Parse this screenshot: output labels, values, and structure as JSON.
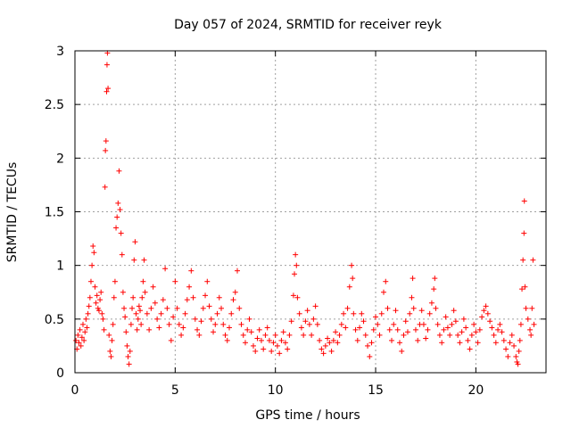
{
  "chart_data": {
    "type": "scatter",
    "title": "Day 057 of 2024, SRMTID for receiver reyk",
    "xlabel": "GPS time / hours",
    "ylabel": "SRMTID / TECUs",
    "xlim": [
      0,
      23.5
    ],
    "ylim": [
      0,
      3
    ],
    "xticks": [
      0,
      5,
      10,
      15,
      20
    ],
    "xtick_labels": [
      "0",
      "5",
      "10",
      "15",
      "20"
    ],
    "yticks": [
      0,
      0.5,
      1,
      1.5,
      2,
      2.5,
      3
    ],
    "ytick_labels": [
      "0",
      "0.5",
      "1",
      "1.5",
      "2",
      "2.5",
      "3"
    ],
    "grid": true,
    "marker": "+",
    "color": "#ff0000",
    "series": [
      {
        "name": "SRMTID",
        "points": [
          [
            0.05,
            0.3
          ],
          [
            0.1,
            0.22
          ],
          [
            0.15,
            0.35
          ],
          [
            0.2,
            0.28
          ],
          [
            0.25,
            0.4
          ],
          [
            0.3,
            0.25
          ],
          [
            0.35,
            0.33
          ],
          [
            0.4,
            0.45
          ],
          [
            0.45,
            0.3
          ],
          [
            0.5,
            0.38
          ],
          [
            0.55,
            0.5
          ],
          [
            0.6,
            0.42
          ],
          [
            0.65,
            0.55
          ],
          [
            0.7,
            0.62
          ],
          [
            0.75,
            0.7
          ],
          [
            0.8,
            0.85
          ],
          [
            0.85,
            1.0
          ],
          [
            0.9,
            1.18
          ],
          [
            0.95,
            1.12
          ],
          [
            1.0,
            0.8
          ],
          [
            1.05,
            0.65
          ],
          [
            1.1,
            0.72
          ],
          [
            1.15,
            0.6
          ],
          [
            1.2,
            0.58
          ],
          [
            1.25,
            0.68
          ],
          [
            1.3,
            0.75
          ],
          [
            1.35,
            0.55
          ],
          [
            1.4,
            0.5
          ],
          [
            1.45,
            0.4
          ],
          [
            1.5,
            1.73
          ],
          [
            1.52,
            2.07
          ],
          [
            1.55,
            2.16
          ],
          [
            1.58,
            2.62
          ],
          [
            1.6,
            2.87
          ],
          [
            1.62,
            2.98
          ],
          [
            1.65,
            2.65
          ],
          [
            1.7,
            0.35
          ],
          [
            1.75,
            0.2
          ],
          [
            1.8,
            0.15
          ],
          [
            1.85,
            0.3
          ],
          [
            1.9,
            0.45
          ],
          [
            1.95,
            0.7
          ],
          [
            2.0,
            0.85
          ],
          [
            2.05,
            1.35
          ],
          [
            2.1,
            1.45
          ],
          [
            2.15,
            1.58
          ],
          [
            2.2,
            1.88
          ],
          [
            2.25,
            1.52
          ],
          [
            2.3,
            1.3
          ],
          [
            2.35,
            1.1
          ],
          [
            2.4,
            0.75
          ],
          [
            2.45,
            0.6
          ],
          [
            2.5,
            0.52
          ],
          [
            2.55,
            0.38
          ],
          [
            2.6,
            0.25
          ],
          [
            2.65,
            0.15
          ],
          [
            2.7,
            0.08
          ],
          [
            2.75,
            0.2
          ],
          [
            2.8,
            0.45
          ],
          [
            2.85,
            0.6
          ],
          [
            2.9,
            0.7
          ],
          [
            2.95,
            1.05
          ],
          [
            3.0,
            1.22
          ],
          [
            3.05,
            0.55
          ],
          [
            3.1,
            0.4
          ],
          [
            3.15,
            0.5
          ],
          [
            3.2,
            0.62
          ],
          [
            3.25,
            0.58
          ],
          [
            3.3,
            0.45
          ],
          [
            3.35,
            0.7
          ],
          [
            3.4,
            0.85
          ],
          [
            3.45,
            1.05
          ],
          [
            3.5,
            0.75
          ],
          [
            3.6,
            0.55
          ],
          [
            3.7,
            0.4
          ],
          [
            3.8,
            0.6
          ],
          [
            3.9,
            0.8
          ],
          [
            4.0,
            0.65
          ],
          [
            4.1,
            0.5
          ],
          [
            4.2,
            0.42
          ],
          [
            4.3,
            0.55
          ],
          [
            4.4,
            0.68
          ],
          [
            4.5,
            0.97
          ],
          [
            4.6,
            0.6
          ],
          [
            4.7,
            0.45
          ],
          [
            4.8,
            0.3
          ],
          [
            4.9,
            0.52
          ],
          [
            5.0,
            0.85
          ],
          [
            5.1,
            0.6
          ],
          [
            5.2,
            0.45
          ],
          [
            5.3,
            0.35
          ],
          [
            5.4,
            0.42
          ],
          [
            5.5,
            0.55
          ],
          [
            5.6,
            0.68
          ],
          [
            5.7,
            0.8
          ],
          [
            5.8,
            0.95
          ],
          [
            5.9,
            0.7
          ],
          [
            6.0,
            0.5
          ],
          [
            6.1,
            0.4
          ],
          [
            6.2,
            0.35
          ],
          [
            6.3,
            0.48
          ],
          [
            6.4,
            0.6
          ],
          [
            6.5,
            0.72
          ],
          [
            6.6,
            0.85
          ],
          [
            6.7,
            0.62
          ],
          [
            6.8,
            0.5
          ],
          [
            6.9,
            0.38
          ],
          [
            7.0,
            0.45
          ],
          [
            7.1,
            0.55
          ],
          [
            7.2,
            0.7
          ],
          [
            7.3,
            0.6
          ],
          [
            7.4,
            0.45
          ],
          [
            7.5,
            0.35
          ],
          [
            7.6,
            0.3
          ],
          [
            7.7,
            0.42
          ],
          [
            7.8,
            0.55
          ],
          [
            7.9,
            0.68
          ],
          [
            8.0,
            0.75
          ],
          [
            8.1,
            0.95
          ],
          [
            8.2,
            0.6
          ],
          [
            8.3,
            0.45
          ],
          [
            8.4,
            0.35
          ],
          [
            8.5,
            0.28
          ],
          [
            8.6,
            0.4
          ],
          [
            8.7,
            0.5
          ],
          [
            8.8,
            0.38
          ],
          [
            8.9,
            0.25
          ],
          [
            9.0,
            0.2
          ],
          [
            9.1,
            0.32
          ],
          [
            9.2,
            0.4
          ],
          [
            9.3,
            0.3
          ],
          [
            9.4,
            0.22
          ],
          [
            9.5,
            0.35
          ],
          [
            9.6,
            0.42
          ],
          [
            9.7,
            0.3
          ],
          [
            9.8,
            0.2
          ],
          [
            9.9,
            0.28
          ],
          [
            10.0,
            0.35
          ],
          [
            10.1,
            0.25
          ],
          [
            10.2,
            0.18
          ],
          [
            10.3,
            0.3
          ],
          [
            10.4,
            0.38
          ],
          [
            10.5,
            0.28
          ],
          [
            10.6,
            0.22
          ],
          [
            10.7,
            0.35
          ],
          [
            10.8,
            0.48
          ],
          [
            10.9,
            0.72
          ],
          [
            10.95,
            0.92
          ],
          [
            11.0,
            1.1
          ],
          [
            11.05,
            1.0
          ],
          [
            11.1,
            0.7
          ],
          [
            11.2,
            0.55
          ],
          [
            11.3,
            0.42
          ],
          [
            11.4,
            0.35
          ],
          [
            11.5,
            0.48
          ],
          [
            11.6,
            0.58
          ],
          [
            11.7,
            0.45
          ],
          [
            11.8,
            0.35
          ],
          [
            11.9,
            0.5
          ],
          [
            12.0,
            0.62
          ],
          [
            12.1,
            0.45
          ],
          [
            12.2,
            0.3
          ],
          [
            12.3,
            0.22
          ],
          [
            12.4,
            0.18
          ],
          [
            12.5,
            0.25
          ],
          [
            12.6,
            0.32
          ],
          [
            12.7,
            0.28
          ],
          [
            12.8,
            0.2
          ],
          [
            12.9,
            0.3
          ],
          [
            13.0,
            0.38
          ],
          [
            13.1,
            0.28
          ],
          [
            13.2,
            0.35
          ],
          [
            13.3,
            0.45
          ],
          [
            13.4,
            0.55
          ],
          [
            13.5,
            0.42
          ],
          [
            13.6,
            0.6
          ],
          [
            13.7,
            0.8
          ],
          [
            13.8,
            1.0
          ],
          [
            13.85,
            0.88
          ],
          [
            13.9,
            0.55
          ],
          [
            14.0,
            0.4
          ],
          [
            14.1,
            0.3
          ],
          [
            14.2,
            0.42
          ],
          [
            14.3,
            0.55
          ],
          [
            14.4,
            0.48
          ],
          [
            14.5,
            0.35
          ],
          [
            14.6,
            0.25
          ],
          [
            14.7,
            0.15
          ],
          [
            14.8,
            0.28
          ],
          [
            14.9,
            0.4
          ],
          [
            15.0,
            0.52
          ],
          [
            15.1,
            0.45
          ],
          [
            15.2,
            0.35
          ],
          [
            15.3,
            0.55
          ],
          [
            15.4,
            0.75
          ],
          [
            15.5,
            0.85
          ],
          [
            15.6,
            0.6
          ],
          [
            15.7,
            0.4
          ],
          [
            15.8,
            0.3
          ],
          [
            15.9,
            0.45
          ],
          [
            16.0,
            0.58
          ],
          [
            16.1,
            0.4
          ],
          [
            16.2,
            0.28
          ],
          [
            16.3,
            0.2
          ],
          [
            16.4,
            0.35
          ],
          [
            16.5,
            0.48
          ],
          [
            16.6,
            0.38
          ],
          [
            16.7,
            0.55
          ],
          [
            16.8,
            0.7
          ],
          [
            16.85,
            0.88
          ],
          [
            16.9,
            0.6
          ],
          [
            17.0,
            0.4
          ],
          [
            17.1,
            0.3
          ],
          [
            17.2,
            0.45
          ],
          [
            17.3,
            0.58
          ],
          [
            17.4,
            0.45
          ],
          [
            17.5,
            0.32
          ],
          [
            17.6,
            0.4
          ],
          [
            17.7,
            0.55
          ],
          [
            17.8,
            0.65
          ],
          [
            17.9,
            0.78
          ],
          [
            17.95,
            0.88
          ],
          [
            18.0,
            0.6
          ],
          [
            18.1,
            0.45
          ],
          [
            18.2,
            0.35
          ],
          [
            18.3,
            0.28
          ],
          [
            18.4,
            0.4
          ],
          [
            18.5,
            0.52
          ],
          [
            18.6,
            0.42
          ],
          [
            18.7,
            0.35
          ],
          [
            18.8,
            0.45
          ],
          [
            18.9,
            0.58
          ],
          [
            19.0,
            0.48
          ],
          [
            19.1,
            0.35
          ],
          [
            19.2,
            0.28
          ],
          [
            19.3,
            0.38
          ],
          [
            19.4,
            0.5
          ],
          [
            19.5,
            0.42
          ],
          [
            19.6,
            0.3
          ],
          [
            19.7,
            0.22
          ],
          [
            19.8,
            0.35
          ],
          [
            19.9,
            0.45
          ],
          [
            20.0,
            0.38
          ],
          [
            20.1,
            0.28
          ],
          [
            20.2,
            0.4
          ],
          [
            20.3,
            0.52
          ],
          [
            20.4,
            0.58
          ],
          [
            20.5,
            0.62
          ],
          [
            20.6,
            0.55
          ],
          [
            20.7,
            0.48
          ],
          [
            20.8,
            0.42
          ],
          [
            20.9,
            0.35
          ],
          [
            21.0,
            0.28
          ],
          [
            21.1,
            0.4
          ],
          [
            21.2,
            0.45
          ],
          [
            21.3,
            0.38
          ],
          [
            21.4,
            0.3
          ],
          [
            21.5,
            0.22
          ],
          [
            21.6,
            0.15
          ],
          [
            21.7,
            0.28
          ],
          [
            21.8,
            0.35
          ],
          [
            21.9,
            0.25
          ],
          [
            22.0,
            0.15
          ],
          [
            22.05,
            0.1
          ],
          [
            22.1,
            0.08
          ],
          [
            22.15,
            0.2
          ],
          [
            22.2,
            0.3
          ],
          [
            22.25,
            0.45
          ],
          [
            22.3,
            0.78
          ],
          [
            22.35,
            1.05
          ],
          [
            22.4,
            1.3
          ],
          [
            22.42,
            1.6
          ],
          [
            22.45,
            0.8
          ],
          [
            22.5,
            0.6
          ],
          [
            22.6,
            0.5
          ],
          [
            22.7,
            0.4
          ],
          [
            22.75,
            0.35
          ],
          [
            22.8,
            0.6
          ],
          [
            22.85,
            1.05
          ],
          [
            22.9,
            0.45
          ]
        ]
      }
    ]
  }
}
